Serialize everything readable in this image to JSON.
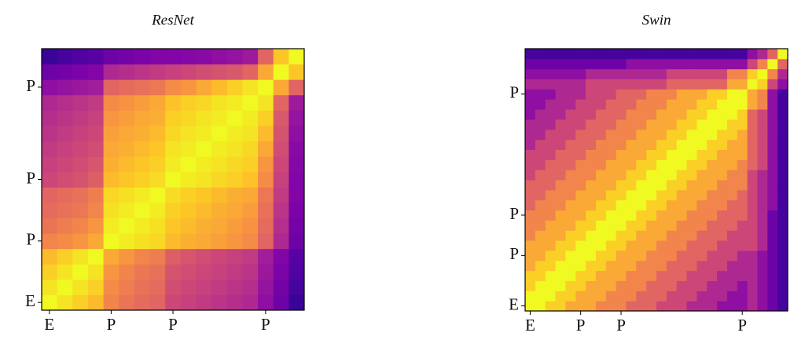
{
  "chart_data": [
    {
      "type": "heatmap",
      "title": "ResNet",
      "colormap": "plasma",
      "zlim": [
        0,
        1
      ],
      "xcategories": [
        "E",
        null,
        null,
        null,
        "P",
        null,
        null,
        null,
        "P",
        null,
        null,
        null,
        null,
        null,
        "P",
        null,
        null
      ],
      "ycategories": [
        "E",
        null,
        null,
        null,
        "P",
        null,
        null,
        null,
        "P",
        null,
        null,
        null,
        null,
        null,
        "P",
        null,
        null
      ],
      "values": [
        [
          1.0,
          0.95,
          0.9,
          0.85,
          0.7,
          0.65,
          0.62,
          0.6,
          0.5,
          0.48,
          0.46,
          0.44,
          0.42,
          0.4,
          0.3,
          0.2,
          0.08
        ],
        [
          0.95,
          1.0,
          0.95,
          0.9,
          0.72,
          0.68,
          0.64,
          0.62,
          0.52,
          0.5,
          0.48,
          0.46,
          0.44,
          0.42,
          0.32,
          0.22,
          0.1
        ],
        [
          0.9,
          0.95,
          1.0,
          0.95,
          0.75,
          0.7,
          0.66,
          0.64,
          0.54,
          0.52,
          0.5,
          0.48,
          0.46,
          0.44,
          0.34,
          0.24,
          0.12
        ],
        [
          0.85,
          0.9,
          0.95,
          1.0,
          0.8,
          0.75,
          0.7,
          0.68,
          0.58,
          0.55,
          0.52,
          0.5,
          0.48,
          0.46,
          0.36,
          0.26,
          0.14
        ],
        [
          0.7,
          0.72,
          0.75,
          0.8,
          1.0,
          0.97,
          0.94,
          0.92,
          0.85,
          0.82,
          0.8,
          0.78,
          0.75,
          0.72,
          0.6,
          0.4,
          0.2
        ],
        [
          0.65,
          0.68,
          0.7,
          0.75,
          0.97,
          1.0,
          0.97,
          0.94,
          0.88,
          0.85,
          0.82,
          0.8,
          0.77,
          0.74,
          0.62,
          0.42,
          0.22
        ],
        [
          0.62,
          0.64,
          0.66,
          0.7,
          0.94,
          0.97,
          1.0,
          0.97,
          0.9,
          0.88,
          0.85,
          0.82,
          0.8,
          0.77,
          0.64,
          0.44,
          0.24
        ],
        [
          0.6,
          0.62,
          0.64,
          0.68,
          0.92,
          0.94,
          0.97,
          1.0,
          0.93,
          0.9,
          0.88,
          0.85,
          0.82,
          0.8,
          0.66,
          0.46,
          0.26
        ],
        [
          0.5,
          0.52,
          0.54,
          0.58,
          0.85,
          0.88,
          0.9,
          0.93,
          1.0,
          0.97,
          0.95,
          0.92,
          0.9,
          0.87,
          0.72,
          0.48,
          0.26
        ],
        [
          0.48,
          0.5,
          0.52,
          0.55,
          0.82,
          0.85,
          0.88,
          0.9,
          0.97,
          1.0,
          0.97,
          0.95,
          0.92,
          0.9,
          0.75,
          0.5,
          0.27
        ],
        [
          0.46,
          0.48,
          0.5,
          0.52,
          0.8,
          0.82,
          0.85,
          0.88,
          0.95,
          0.97,
          1.0,
          0.97,
          0.95,
          0.92,
          0.8,
          0.52,
          0.28
        ],
        [
          0.44,
          0.46,
          0.48,
          0.5,
          0.78,
          0.8,
          0.82,
          0.85,
          0.92,
          0.95,
          0.97,
          1.0,
          0.97,
          0.95,
          0.85,
          0.54,
          0.3
        ],
        [
          0.42,
          0.44,
          0.46,
          0.48,
          0.75,
          0.77,
          0.8,
          0.82,
          0.9,
          0.92,
          0.95,
          0.97,
          1.0,
          0.97,
          0.9,
          0.56,
          0.32
        ],
        [
          0.4,
          0.42,
          0.44,
          0.46,
          0.72,
          0.74,
          0.77,
          0.8,
          0.87,
          0.9,
          0.92,
          0.95,
          0.97,
          1.0,
          0.95,
          0.6,
          0.35
        ],
        [
          0.3,
          0.32,
          0.34,
          0.36,
          0.6,
          0.62,
          0.64,
          0.66,
          0.72,
          0.75,
          0.8,
          0.85,
          0.9,
          0.95,
          1.0,
          0.8,
          0.6
        ],
        [
          0.2,
          0.22,
          0.24,
          0.26,
          0.4,
          0.42,
          0.44,
          0.46,
          0.48,
          0.5,
          0.52,
          0.54,
          0.56,
          0.6,
          0.8,
          1.0,
          0.88
        ],
        [
          0.08,
          0.1,
          0.12,
          0.14,
          0.2,
          0.22,
          0.24,
          0.26,
          0.26,
          0.27,
          0.28,
          0.3,
          0.32,
          0.35,
          0.6,
          0.88,
          1.0
        ]
      ]
    },
    {
      "type": "heatmap",
      "title": "Swin",
      "colormap": "plasma",
      "zlim": [
        0,
        1
      ],
      "xcategories": [
        "E",
        null,
        null,
        null,
        null,
        "P",
        null,
        null,
        null,
        "P",
        null,
        null,
        null,
        null,
        null,
        null,
        null,
        null,
        null,
        null,
        null,
        "P",
        null,
        null,
        null,
        null
      ],
      "ycategories": [
        "E",
        null,
        null,
        null,
        null,
        "P",
        null,
        null,
        null,
        "P",
        null,
        null,
        null,
        null,
        null,
        null,
        null,
        null,
        null,
        null,
        null,
        "P",
        null,
        null,
        null,
        null
      ],
      "values": [
        [
          1.0,
          1.0,
          0.9,
          0.9,
          0.8,
          0.8,
          0.8,
          0.7,
          0.7,
          0.7,
          0.6,
          0.6,
          0.6,
          0.5,
          0.5,
          0.5,
          0.4,
          0.4,
          0.4,
          0.3,
          0.3,
          0.3,
          0.4,
          0.3,
          0.2,
          0.1
        ],
        [
          1.0,
          1.0,
          1.0,
          0.9,
          0.9,
          0.8,
          0.8,
          0.8,
          0.7,
          0.7,
          0.7,
          0.6,
          0.6,
          0.6,
          0.5,
          0.5,
          0.5,
          0.4,
          0.4,
          0.4,
          0.3,
          0.3,
          0.4,
          0.3,
          0.2,
          0.1
        ],
        [
          0.9,
          1.0,
          1.0,
          1.0,
          0.9,
          0.9,
          0.8,
          0.8,
          0.8,
          0.7,
          0.7,
          0.7,
          0.6,
          0.6,
          0.6,
          0.5,
          0.5,
          0.5,
          0.4,
          0.4,
          0.4,
          0.3,
          0.4,
          0.3,
          0.2,
          0.1
        ],
        [
          0.9,
          0.9,
          1.0,
          1.0,
          1.0,
          0.9,
          0.9,
          0.8,
          0.8,
          0.8,
          0.7,
          0.7,
          0.7,
          0.6,
          0.6,
          0.6,
          0.5,
          0.5,
          0.5,
          0.4,
          0.4,
          0.4,
          0.4,
          0.3,
          0.2,
          0.1
        ],
        [
          0.8,
          0.9,
          0.9,
          1.0,
          1.0,
          1.0,
          0.9,
          0.9,
          0.8,
          0.8,
          0.8,
          0.7,
          0.7,
          0.7,
          0.6,
          0.6,
          0.6,
          0.5,
          0.5,
          0.5,
          0.4,
          0.4,
          0.4,
          0.3,
          0.2,
          0.1
        ],
        [
          0.8,
          0.8,
          0.9,
          0.9,
          1.0,
          1.0,
          1.0,
          0.9,
          0.9,
          0.8,
          0.8,
          0.8,
          0.7,
          0.7,
          0.7,
          0.6,
          0.6,
          0.6,
          0.5,
          0.5,
          0.5,
          0.4,
          0.4,
          0.3,
          0.2,
          0.1
        ],
        [
          0.8,
          0.8,
          0.8,
          0.9,
          0.9,
          1.0,
          1.0,
          1.0,
          0.9,
          0.9,
          0.8,
          0.8,
          0.8,
          0.7,
          0.7,
          0.7,
          0.6,
          0.6,
          0.6,
          0.5,
          0.5,
          0.5,
          0.5,
          0.4,
          0.2,
          0.1
        ],
        [
          0.7,
          0.8,
          0.8,
          0.8,
          0.9,
          0.9,
          1.0,
          1.0,
          1.0,
          0.9,
          0.9,
          0.8,
          0.8,
          0.8,
          0.7,
          0.7,
          0.7,
          0.6,
          0.6,
          0.6,
          0.5,
          0.5,
          0.5,
          0.4,
          0.2,
          0.1
        ],
        [
          0.7,
          0.7,
          0.8,
          0.8,
          0.8,
          0.9,
          0.9,
          1.0,
          1.0,
          1.0,
          0.9,
          0.9,
          0.8,
          0.8,
          0.8,
          0.7,
          0.7,
          0.7,
          0.6,
          0.6,
          0.6,
          0.5,
          0.5,
          0.4,
          0.2,
          0.1
        ],
        [
          0.7,
          0.7,
          0.7,
          0.8,
          0.8,
          0.8,
          0.9,
          0.9,
          1.0,
          1.0,
          1.0,
          0.9,
          0.9,
          0.8,
          0.8,
          0.8,
          0.7,
          0.7,
          0.7,
          0.6,
          0.6,
          0.6,
          0.5,
          0.4,
          0.2,
          0.1
        ],
        [
          0.6,
          0.7,
          0.7,
          0.7,
          0.8,
          0.8,
          0.8,
          0.9,
          0.9,
          1.0,
          1.0,
          1.0,
          0.9,
          0.9,
          0.8,
          0.8,
          0.8,
          0.7,
          0.7,
          0.7,
          0.6,
          0.6,
          0.5,
          0.4,
          0.3,
          0.1
        ],
        [
          0.6,
          0.6,
          0.7,
          0.7,
          0.7,
          0.8,
          0.8,
          0.8,
          0.9,
          0.9,
          1.0,
          1.0,
          1.0,
          0.9,
          0.9,
          0.8,
          0.8,
          0.8,
          0.7,
          0.7,
          0.7,
          0.6,
          0.5,
          0.4,
          0.3,
          0.1
        ],
        [
          0.6,
          0.6,
          0.6,
          0.7,
          0.7,
          0.7,
          0.8,
          0.8,
          0.8,
          0.9,
          0.9,
          1.0,
          1.0,
          1.0,
          0.9,
          0.9,
          0.8,
          0.8,
          0.8,
          0.7,
          0.7,
          0.7,
          0.5,
          0.4,
          0.3,
          0.1
        ],
        [
          0.5,
          0.6,
          0.6,
          0.6,
          0.7,
          0.7,
          0.7,
          0.8,
          0.8,
          0.8,
          0.9,
          0.9,
          1.0,
          1.0,
          1.0,
          0.9,
          0.9,
          0.8,
          0.8,
          0.8,
          0.7,
          0.7,
          0.5,
          0.4,
          0.3,
          0.1
        ],
        [
          0.5,
          0.5,
          0.6,
          0.6,
          0.6,
          0.7,
          0.7,
          0.7,
          0.8,
          0.8,
          0.8,
          0.9,
          0.9,
          1.0,
          1.0,
          1.0,
          0.9,
          0.9,
          0.8,
          0.8,
          0.8,
          0.7,
          0.6,
          0.5,
          0.3,
          0.1
        ],
        [
          0.5,
          0.5,
          0.5,
          0.6,
          0.6,
          0.6,
          0.7,
          0.7,
          0.7,
          0.8,
          0.8,
          0.8,
          0.9,
          0.9,
          1.0,
          1.0,
          1.0,
          0.9,
          0.9,
          0.8,
          0.8,
          0.8,
          0.6,
          0.5,
          0.3,
          0.1
        ],
        [
          0.4,
          0.5,
          0.5,
          0.5,
          0.6,
          0.6,
          0.6,
          0.7,
          0.7,
          0.7,
          0.8,
          0.8,
          0.8,
          0.9,
          0.9,
          1.0,
          1.0,
          1.0,
          0.9,
          0.9,
          0.8,
          0.8,
          0.6,
          0.5,
          0.3,
          0.1
        ],
        [
          0.4,
          0.4,
          0.5,
          0.5,
          0.5,
          0.6,
          0.6,
          0.6,
          0.7,
          0.7,
          0.7,
          0.8,
          0.8,
          0.8,
          0.9,
          0.9,
          1.0,
          1.0,
          1.0,
          0.9,
          0.9,
          0.8,
          0.6,
          0.5,
          0.3,
          0.1
        ],
        [
          0.4,
          0.4,
          0.4,
          0.5,
          0.5,
          0.5,
          0.6,
          0.6,
          0.6,
          0.7,
          0.7,
          0.7,
          0.8,
          0.8,
          0.8,
          0.9,
          0.9,
          1.0,
          1.0,
          1.0,
          0.9,
          0.9,
          0.6,
          0.5,
          0.3,
          0.1
        ],
        [
          0.3,
          0.4,
          0.4,
          0.4,
          0.5,
          0.5,
          0.5,
          0.6,
          0.6,
          0.6,
          0.7,
          0.7,
          0.7,
          0.8,
          0.8,
          0.8,
          0.9,
          0.9,
          1.0,
          1.0,
          1.0,
          0.9,
          0.6,
          0.5,
          0.3,
          0.1
        ],
        [
          0.3,
          0.3,
          0.4,
          0.4,
          0.4,
          0.5,
          0.5,
          0.5,
          0.6,
          0.6,
          0.6,
          0.7,
          0.7,
          0.7,
          0.8,
          0.8,
          0.8,
          0.9,
          0.9,
          1.0,
          1.0,
          1.0,
          0.8,
          0.7,
          0.3,
          0.1
        ],
        [
          0.3,
          0.3,
          0.3,
          0.4,
          0.4,
          0.4,
          0.5,
          0.5,
          0.5,
          0.6,
          0.6,
          0.6,
          0.7,
          0.7,
          0.7,
          0.8,
          0.8,
          0.8,
          0.9,
          0.9,
          1.0,
          1.0,
          0.8,
          0.7,
          0.3,
          0.1
        ],
        [
          0.4,
          0.4,
          0.4,
          0.4,
          0.4,
          0.4,
          0.5,
          0.5,
          0.5,
          0.5,
          0.5,
          0.5,
          0.5,
          0.5,
          0.6,
          0.6,
          0.6,
          0.6,
          0.6,
          0.6,
          0.8,
          0.8,
          1.0,
          0.9,
          0.5,
          0.3
        ],
        [
          0.3,
          0.3,
          0.3,
          0.3,
          0.3,
          0.3,
          0.4,
          0.4,
          0.4,
          0.4,
          0.4,
          0.4,
          0.4,
          0.4,
          0.5,
          0.5,
          0.5,
          0.5,
          0.5,
          0.5,
          0.7,
          0.7,
          0.9,
          1.0,
          0.7,
          0.4
        ],
        [
          0.2,
          0.2,
          0.2,
          0.2,
          0.2,
          0.2,
          0.2,
          0.2,
          0.2,
          0.2,
          0.3,
          0.3,
          0.3,
          0.3,
          0.3,
          0.3,
          0.3,
          0.3,
          0.3,
          0.3,
          0.3,
          0.3,
          0.5,
          0.7,
          1.0,
          0.6
        ],
        [
          0.1,
          0.1,
          0.1,
          0.1,
          0.1,
          0.1,
          0.1,
          0.1,
          0.1,
          0.1,
          0.1,
          0.1,
          0.1,
          0.1,
          0.1,
          0.1,
          0.1,
          0.1,
          0.1,
          0.1,
          0.1,
          0.1,
          0.3,
          0.4,
          0.6,
          1.0
        ]
      ]
    }
  ]
}
